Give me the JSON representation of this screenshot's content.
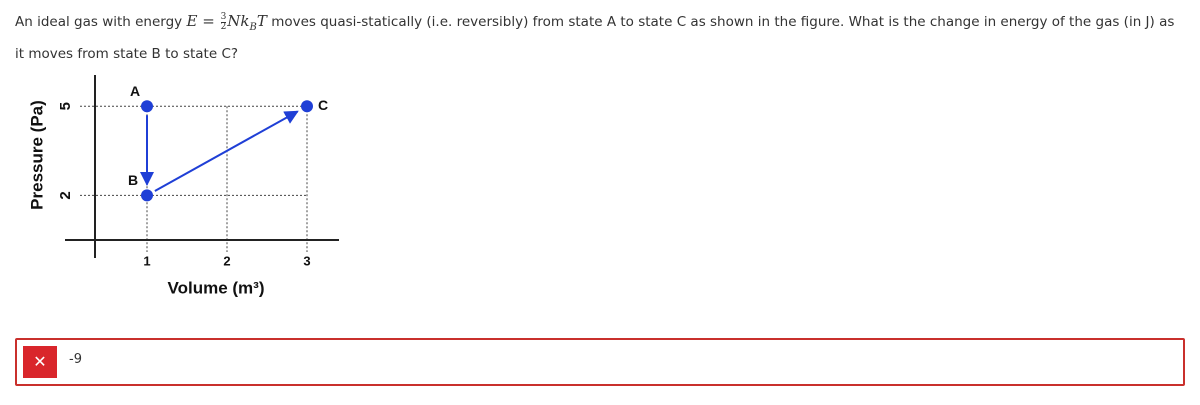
{
  "question": {
    "before": "An ideal gas with energy",
    "formula": {
      "lhs": "E",
      "eq": "=",
      "num": "3",
      "den": "2",
      "body": "Nk",
      "sub": "B",
      "tail": "T"
    },
    "after": "moves quasi-statically (i.e. reversibly) from state A to state C as shown in the figure. What is the change in energy of the gas (in J) as it moves from state B to state C?"
  },
  "figure": {
    "type": "line",
    "x_label": "Volume (m³)",
    "y_label": "Pressure (Pa)",
    "xlim": [
      0.35,
      3.4
    ],
    "ylim": [
      0.5,
      6.05
    ],
    "xticks": [
      1,
      2,
      3
    ],
    "yticks": [
      5,
      2
    ],
    "color": "#1f3fd6",
    "points": [
      {
        "label": "A",
        "x": 1,
        "y": 5
      },
      {
        "label": "B",
        "x": 1,
        "y": 2
      },
      {
        "label": "C",
        "x": 3,
        "y": 5
      }
    ],
    "paths": [
      [
        0,
        1
      ],
      [
        1,
        2
      ]
    ]
  },
  "answer": {
    "icon": "✕",
    "value": "-9"
  }
}
